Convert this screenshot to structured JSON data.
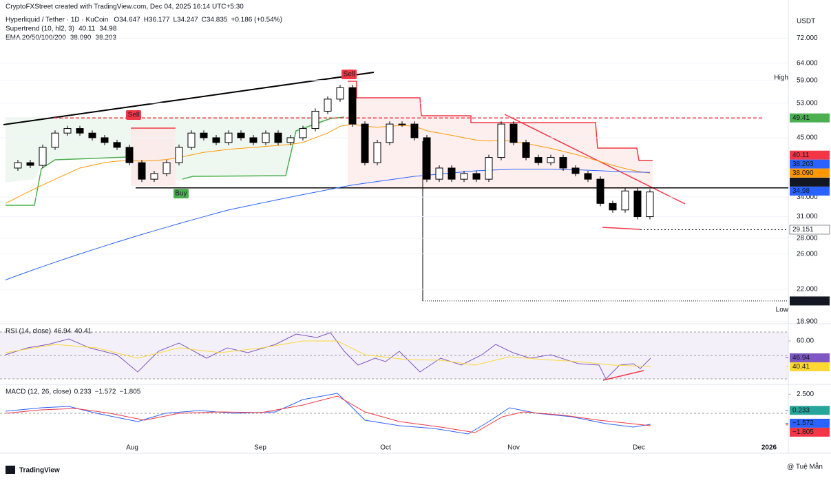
{
  "header": {
    "credit": "CryptoFXStreet created with TradingView.com, Dec 04, 2025 16:14 UTC+5:30",
    "ohlc": [
      "O34.647",
      "H36.177",
      "L34.247",
      "C34.835",
      "+0.186 (+0.54%)"
    ],
    "indicators": [
      {
        "name": "Supertrend (10, hl2, 3)",
        "values": [
          "40.11",
          "34.98"
        ],
        "colors": [
          "#f23645",
          "#2962ff"
        ]
      },
      {
        "name": "EMA 20/50/100/200",
        "values": [
          "38.090",
          "38.203"
        ],
        "colors": [
          "#ff9800",
          "#2962ff"
        ]
      }
    ],
    "logo": "TradingView",
    "watermark": "@ Tuệ Mẫn"
  },
  "chart_data": {
    "type": "candlestick",
    "title": "Hyperliquid / Tether · 1D · KuCoin",
    "unit": "USDT",
    "log": true,
    "ylim": [
      18.7,
      75.7
    ],
    "yticks": [
      {
        "value": 72,
        "label": "72.000"
      },
      {
        "value": 64,
        "label": "64.000"
      },
      {
        "value": 59,
        "label": "59.000"
      },
      {
        "value": 53,
        "label": "53.000"
      },
      {
        "value": 45,
        "label": "45.000"
      },
      {
        "value": 34,
        "label": "34.000"
      },
      {
        "value": 31,
        "label": "31.000"
      },
      {
        "value": 28,
        "label": "28.000"
      },
      {
        "value": 26,
        "label": "26.000"
      },
      {
        "value": 22,
        "label": "22.000"
      },
      {
        "value": 18.9,
        "label": "18.900"
      }
    ],
    "series": [
      {
        "name": "Hyperliquid / Tether",
        "values": [
          39,
          40,
          39.5,
          43,
          46,
          47,
          46,
          45,
          44,
          43,
          40,
          37,
          38,
          40,
          43,
          46,
          45,
          44,
          46,
          45,
          44,
          46,
          44,
          45,
          47,
          51,
          54,
          57,
          48,
          40,
          44,
          48,
          48,
          45,
          37,
          39,
          37,
          38,
          37,
          41,
          48,
          44,
          41,
          40,
          41,
          39,
          38,
          37,
          33,
          32,
          35,
          31,
          34.835
        ]
      }
    ],
    "ema_lines": [
      {
        "color": "#ff9800",
        "values": [
          33,
          34,
          35,
          36,
          37,
          38,
          39,
          39.5,
          40,
          40.3,
          40.4,
          40.3,
          40.4,
          40.6,
          41,
          41.5,
          42,
          42.3,
          42.6,
          42.8,
          43,
          43.2,
          43.4,
          43.6,
          44,
          45,
          46,
          47.5,
          48,
          47.5,
          47.3,
          47.5,
          47.7,
          47.5,
          46.5,
          46,
          45.5,
          45,
          44.5,
          44.3,
          44.5,
          44.2,
          43.8,
          43.3,
          42.8,
          42.2,
          41.6,
          40.9,
          40.2,
          39.5,
          38.9,
          38.4,
          38.09
        ]
      },
      {
        "color": "#2962ff",
        "values": [
          23,
          23.5,
          24,
          24.5,
          25,
          25.5,
          26,
          26.5,
          27,
          27.5,
          28,
          28.5,
          29,
          29.5,
          30,
          30.5,
          31,
          31.5,
          32,
          32.4,
          32.8,
          33.2,
          33.6,
          34,
          34.4,
          34.8,
          35.2,
          35.6,
          36,
          36.3,
          36.6,
          36.9,
          37.2,
          37.5,
          37.7,
          37.9,
          38.1,
          38.3,
          38.5,
          38.6,
          38.7,
          38.8,
          38.8,
          38.8,
          38.8,
          38.7,
          38.7,
          38.6,
          38.5,
          38.4,
          38.3,
          38.25,
          38.203
        ]
      }
    ],
    "price_labels": [
      {
        "value": 49.41,
        "label": "49.41",
        "color": "#4caf50"
      },
      {
        "value": 40.11,
        "label": "40.11",
        "color": "#f23645"
      },
      {
        "value": 38.203,
        "label": "38.203",
        "color": "#2962ff"
      },
      {
        "value": 38.09,
        "label": "38.090",
        "color": "#ff9800"
      },
      {
        "value": 35.513,
        "label": "35.513",
        "color": "#131722"
      },
      {
        "value": 34.98,
        "label": "34.98",
        "color": "#2962ff"
      },
      {
        "value": 29.151,
        "label": "29.151",
        "color": "#ffffff"
      },
      {
        "value": 20.824,
        "label": "20.824",
        "color": "#131722"
      }
    ],
    "extremes": [
      "High",
      "Low"
    ],
    "signals": [
      "Sell",
      "Sell",
      "Buy"
    ],
    "x_labels": [
      "Aug",
      "Sep",
      "Oct",
      "Nov",
      "Dec",
      "2026"
    ],
    "rsi": {
      "title": "RSI (14, close)",
      "values": [
        "46.94",
        "40.41"
      ],
      "ylim": [
        28,
        71.2
      ],
      "ytick": {
        "value": 60,
        "label": "60.00"
      },
      "labels": [
        {
          "value": 46.94,
          "label": "46.94",
          "color": "#7e57c2"
        },
        {
          "value": 40.41,
          "label": "40.41",
          "color": "#fdd835"
        }
      ]
    },
    "macd": {
      "title": "MACD (12, 26, close)",
      "values": [
        "0.233",
        "−1.572",
        "−1.805"
      ],
      "ylim": [
        -5.5,
        3.5
      ],
      "ytick": {
        "value": 2.5,
        "label": "2.500"
      },
      "labels": [
        {
          "value": 0.233,
          "label": "0.233",
          "color": "#26a69a"
        },
        {
          "value": -1.572,
          "label": "−1.572",
          "color": "#2962ff"
        },
        {
          "value": -1.805,
          "label": "−1.805",
          "color": "#f23645"
        }
      ]
    }
  }
}
